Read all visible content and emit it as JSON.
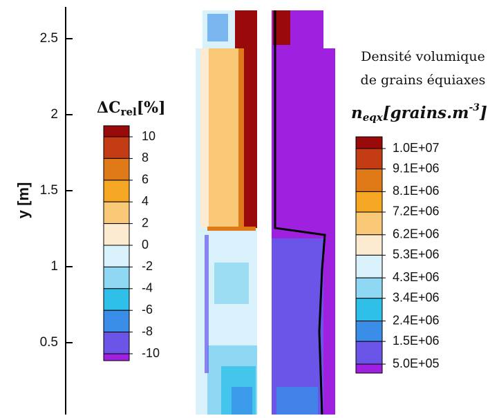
{
  "chart_data": {
    "type": "contour",
    "y_label": "y [m]",
    "ylim": [
      0,
      2.7
    ],
    "yticks": [
      0.5,
      1,
      1.5,
      2,
      2.5
    ],
    "colorbars": [
      {
        "title": "ΔC",
        "title_sub": "rel",
        "title_suffix": "[%]",
        "ticks": [
          10,
          8,
          6,
          4,
          2,
          0,
          -2,
          -4,
          -6,
          -8,
          -10
        ],
        "colors": [
          "#9b0a0a",
          "#c43c14",
          "#e07a18",
          "#f5a623",
          "#f8c877",
          "#fcebd0",
          "#d8f1fa",
          "#8fd8f3",
          "#2fc0ea",
          "#3a8ee8",
          "#6a55e8",
          "#a020e0"
        ]
      },
      {
        "title_lines": [
          "Densité volumique",
          "de grains équiaxes"
        ],
        "symbol": "n",
        "symbol_sub": "eqx",
        "unit": "[grains.m",
        "unit_sup": "-3",
        "unit_end": "]",
        "ticks": [
          {
            "value": 10000000,
            "label": "1.0E+07"
          },
          {
            "value": 9100000,
            "label": "9.1E+06"
          },
          {
            "value": 8100000,
            "label": "8.1E+06"
          },
          {
            "value": 7200000,
            "label": "7.2E+06"
          },
          {
            "value": 6200000,
            "label": "6.2E+06"
          },
          {
            "value": 5300000,
            "label": "5.3E+06"
          },
          {
            "value": 4300000,
            "label": "4.3E+06"
          },
          {
            "value": 3400000,
            "label": "3.4E+06"
          },
          {
            "value": 2400000,
            "label": "2.4E+06"
          },
          {
            "value": 1500000,
            "label": "1.5E+06"
          },
          {
            "value": 500000,
            "label": "5.0E+05"
          }
        ],
        "colors": [
          "#9b0a0a",
          "#c43c14",
          "#e07a18",
          "#f5a623",
          "#f8c877",
          "#fcebd0",
          "#d8f1fa",
          "#8fd8f3",
          "#2fc0ea",
          "#3a8ee8",
          "#6a55e8",
          "#a020e0"
        ]
      }
    ]
  }
}
